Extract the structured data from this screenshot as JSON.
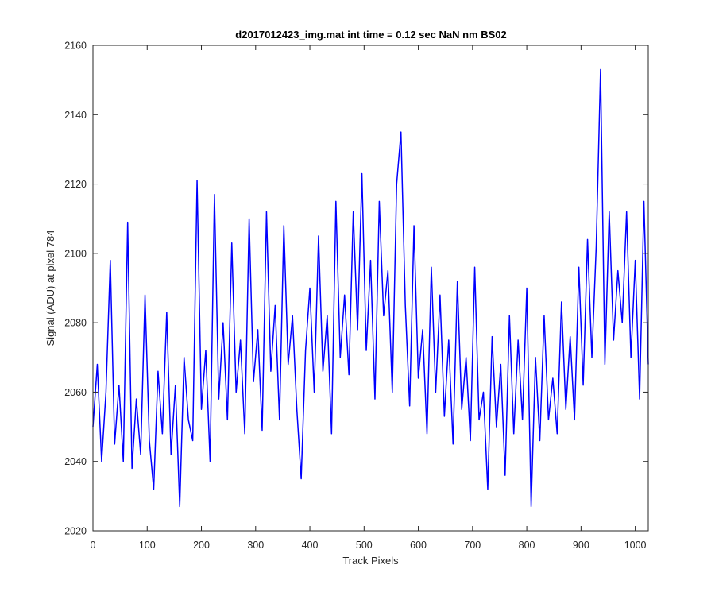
{
  "chart_data": {
    "type": "line",
    "title": "d2017012423_img.mat int time = 0.12 sec  NaN nm BS02",
    "xlabel": "Track Pixels",
    "ylabel": "Signal (ADU) at pixel 784",
    "xlim": [
      0,
      1024
    ],
    "ylim": [
      2020,
      2160
    ],
    "xticks": [
      0,
      100,
      200,
      300,
      400,
      500,
      600,
      700,
      800,
      900,
      1000
    ],
    "yticks": [
      2020,
      2040,
      2060,
      2080,
      2100,
      2120,
      2140,
      2160
    ],
    "grid": false,
    "legend": "none",
    "series_color": "#0000ff",
    "series": [
      {
        "x": [
          0,
          8,
          16,
          24,
          32,
          40,
          48,
          56,
          64,
          72,
          80,
          88,
          96,
          104,
          112,
          120,
          128,
          136,
          144,
          152,
          160,
          168,
          176,
          184,
          192,
          200,
          208,
          216,
          224,
          232,
          240,
          248,
          256,
          264,
          272,
          280,
          288,
          296,
          304,
          312,
          320,
          328,
          336,
          344,
          352,
          360,
          368,
          376,
          384,
          392,
          400,
          408,
          416,
          424,
          432,
          440,
          448,
          456,
          464,
          472,
          480,
          488,
          496,
          504,
          512,
          520,
          528,
          536,
          544,
          552,
          560,
          568,
          576,
          584,
          592,
          600,
          608,
          616,
          624,
          632,
          640,
          648,
          656,
          664,
          672,
          680,
          688,
          696,
          704,
          712,
          720,
          728,
          736,
          744,
          752,
          760,
          768,
          776,
          784,
          792,
          800,
          808,
          816,
          824,
          832,
          840,
          848,
          856,
          864,
          872,
          880,
          888,
          896,
          904,
          912,
          920,
          928,
          936,
          944,
          952,
          960,
          968,
          976,
          984,
          992,
          1000,
          1008,
          1016,
          1024
        ],
        "values": [
          2050,
          2068,
          2040,
          2060,
          2098,
          2045,
          2062,
          2040,
          2109,
          2038,
          2058,
          2042,
          2088,
          2046,
          2032,
          2066,
          2048,
          2083,
          2042,
          2062,
          2027,
          2070,
          2052,
          2046,
          2121,
          2055,
          2072,
          2040,
          2117,
          2058,
          2080,
          2052,
          2103,
          2060,
          2075,
          2048,
          2110,
          2063,
          2078,
          2049,
          2112,
          2066,
          2085,
          2052,
          2108,
          2068,
          2082,
          2055,
          2035,
          2072,
          2090,
          2060,
          2105,
          2066,
          2082,
          2048,
          2115,
          2070,
          2088,
          2065,
          2112,
          2078,
          2123,
          2072,
          2098,
          2058,
          2115,
          2082,
          2095,
          2060,
          2120,
          2135,
          2085,
          2056,
          2108,
          2064,
          2078,
          2048,
          2096,
          2060,
          2088,
          2053,
          2075,
          2045,
          2092,
          2055,
          2070,
          2046,
          2096,
          2052,
          2060,
          2032,
          2076,
          2050,
          2068,
          2036,
          2082,
          2048,
          2075,
          2052,
          2090,
          2027,
          2070,
          2046,
          2082,
          2052,
          2064,
          2048,
          2086,
          2055,
          2076,
          2052,
          2096,
          2062,
          2104,
          2070,
          2102,
          2153,
          2068,
          2112,
          2075,
          2095,
          2080,
          2112,
          2070,
          2098,
          2058,
          2115,
          2068
        ]
      }
    ]
  }
}
